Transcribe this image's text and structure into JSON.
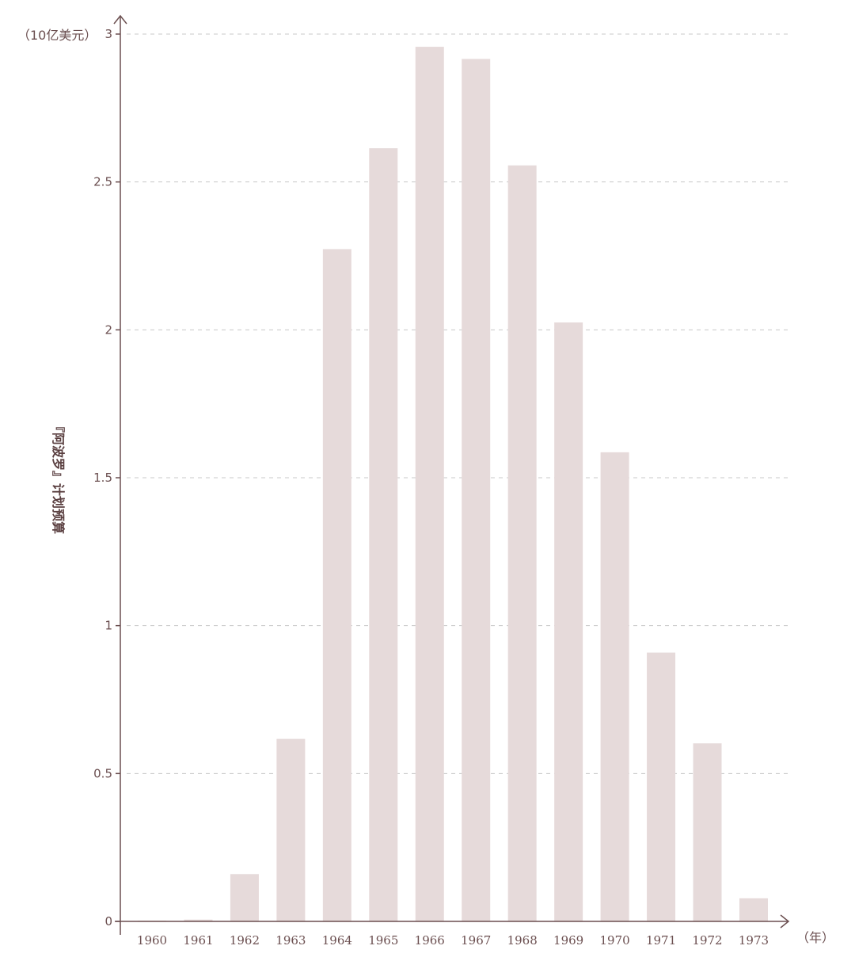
{
  "chart_data": {
    "type": "bar",
    "title": "",
    "xlabel": "（年）",
    "ylabel": "『阿波罗』计划预算",
    "yunit": "（10亿美元）",
    "categories": [
      "1960",
      "1961",
      "1962",
      "1963",
      "1964",
      "1965",
      "1966",
      "1967",
      "1968",
      "1969",
      "1970",
      "1971",
      "1972",
      "1973"
    ],
    "values": [
      0.0003,
      0.006,
      0.16,
      0.617,
      2.273,
      2.614,
      2.957,
      2.916,
      2.556,
      2.025,
      1.586,
      0.909,
      0.602,
      0.078
    ],
    "ylim": [
      0,
      3
    ],
    "yticks": [
      "0",
      "0.5",
      "1",
      "1.5",
      "2",
      "2.5",
      "3"
    ],
    "grid": true,
    "colors": {
      "bar": "#e6dada",
      "axis": "#6b4f50",
      "grid": "#c8c8c8"
    }
  }
}
